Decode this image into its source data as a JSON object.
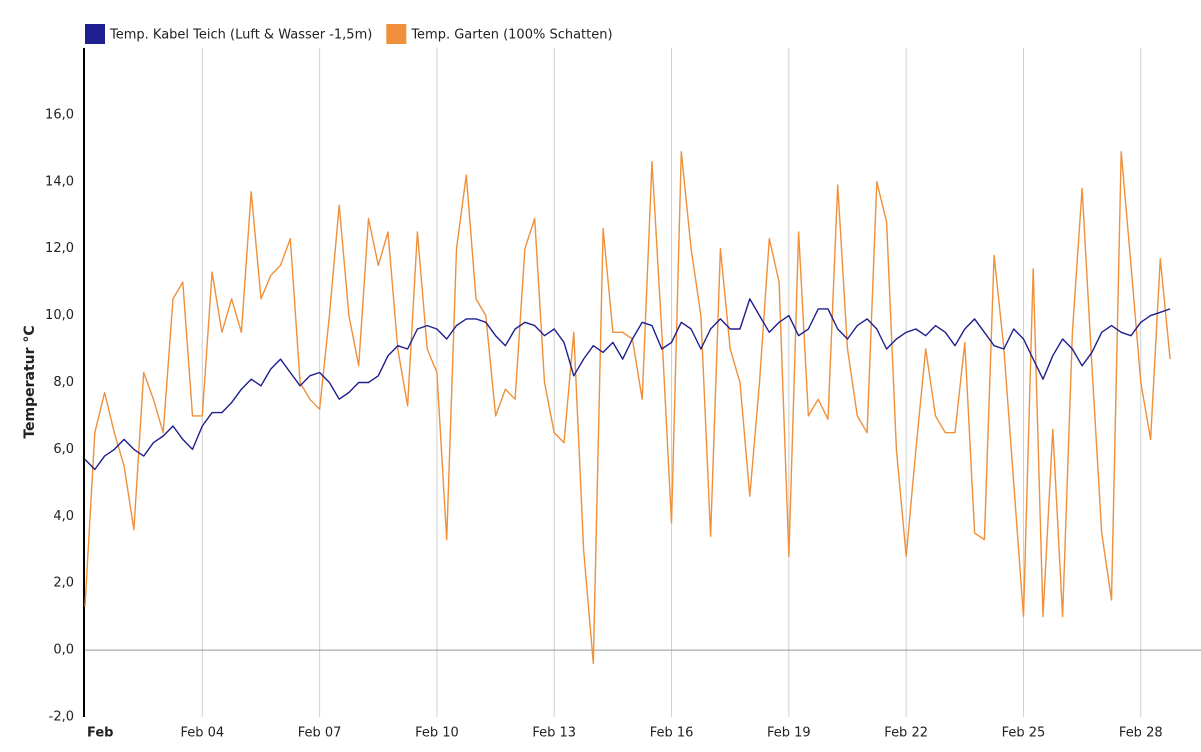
{
  "chart_data": {
    "type": "line",
    "y_label": "Temperatur °C",
    "x": [
      0,
      0.25,
      0.5,
      0.75,
      1,
      1.25,
      1.5,
      1.75,
      2,
      2.25,
      2.5,
      2.75,
      3,
      3.25,
      3.5,
      3.75,
      4,
      4.25,
      4.5,
      4.75,
      5,
      5.25,
      5.5,
      5.75,
      6,
      6.25,
      6.5,
      6.75,
      7,
      7.25,
      7.5,
      7.75,
      8,
      8.25,
      8.5,
      8.75,
      9,
      9.25,
      9.5,
      9.75,
      10,
      10.25,
      10.5,
      10.75,
      11,
      11.25,
      11.5,
      11.75,
      12,
      12.25,
      12.5,
      12.75,
      13,
      13.25,
      13.5,
      13.75,
      14,
      14.25,
      14.5,
      14.75,
      15,
      15.25,
      15.5,
      15.75,
      16,
      16.25,
      16.5,
      16.75,
      17,
      17.25,
      17.5,
      17.75,
      18,
      18.25,
      18.5,
      18.75,
      19,
      19.25,
      19.5,
      19.75,
      20,
      20.25,
      20.5,
      20.75,
      21,
      21.25,
      21.5,
      21.75,
      22,
      22.25,
      22.5,
      22.75,
      23,
      23.25,
      23.5,
      23.75,
      24,
      24.25,
      24.5,
      24.75,
      25,
      25.25,
      25.5,
      25.75,
      26,
      26.25,
      26.5,
      26.75,
      27,
      27.25,
      27.5,
      27.75
    ],
    "series": [
      {
        "name": "Temp. Kabel Teich (Luft & Wasser -1,5m)",
        "color": "#1f1f8f",
        "values": [
          5.7,
          5.4,
          5.8,
          6.0,
          6.3,
          6.0,
          5.8,
          6.2,
          6.4,
          6.7,
          6.3,
          6.0,
          6.7,
          7.1,
          7.1,
          7.4,
          7.8,
          8.1,
          7.9,
          8.4,
          8.7,
          8.3,
          7.9,
          8.2,
          8.3,
          8.0,
          7.5,
          7.7,
          8.0,
          8.0,
          8.2,
          8.8,
          9.1,
          9.0,
          9.6,
          9.7,
          9.6,
          9.3,
          9.7,
          9.9,
          9.9,
          9.8,
          9.4,
          9.1,
          9.6,
          9.8,
          9.7,
          9.4,
          9.6,
          9.2,
          8.2,
          8.7,
          9.1,
          8.9,
          9.2,
          8.7,
          9.3,
          9.8,
          9.7,
          9.0,
          9.2,
          9.8,
          9.6,
          9.0,
          9.6,
          9.9,
          9.6,
          9.6,
          10.5,
          10.0,
          9.5,
          9.8,
          10.0,
          9.4,
          9.6,
          10.2,
          10.2,
          9.6,
          9.3,
          9.7,
          9.9,
          9.6,
          9.0,
          9.3,
          9.5,
          9.6,
          9.4,
          9.7,
          9.5,
          9.1,
          9.6,
          9.9,
          9.5,
          9.1,
          9.0,
          9.6,
          9.3,
          8.7,
          8.1,
          8.8,
          9.3,
          9.0,
          8.5,
          8.9,
          9.5,
          9.7,
          9.5,
          9.4,
          9.8,
          10.0,
          10.1,
          10.2
        ]
      },
      {
        "name": "Temp. Garten (100% Schatten)",
        "color": "#f0903a",
        "values": [
          1.3,
          6.5,
          7.7,
          6.5,
          5.5,
          3.6,
          8.3,
          7.5,
          6.5,
          10.5,
          11.0,
          7.0,
          7.0,
          11.3,
          9.5,
          10.5,
          9.5,
          13.7,
          10.5,
          11.2,
          11.5,
          12.3,
          8.0,
          7.5,
          7.2,
          10.0,
          13.3,
          10.0,
          8.5,
          12.9,
          11.5,
          12.5,
          9.0,
          7.3,
          12.5,
          9.0,
          8.3,
          3.3,
          12.0,
          14.2,
          10.5,
          10.0,
          7.0,
          7.8,
          7.5,
          12.0,
          12.9,
          8.0,
          6.5,
          6.2,
          9.5,
          3.0,
          -0.4,
          12.6,
          9.5,
          9.5,
          9.3,
          7.5,
          14.6,
          9.5,
          3.8,
          14.9,
          12.0,
          10.0,
          3.4,
          12.0,
          9.0,
          8.0,
          4.6,
          8.0,
          12.3,
          11.0,
          2.8,
          12.5,
          7.0,
          7.5,
          6.9,
          13.9,
          9.0,
          7.0,
          6.5,
          14.0,
          12.8,
          6.0,
          2.8,
          6.0,
          9.0,
          7.0,
          6.5,
          6.5,
          9.2,
          3.5,
          3.3,
          11.8,
          9.0,
          5.0,
          1.0,
          11.4,
          1.0,
          6.6,
          1.0,
          9.5,
          13.8,
          8.5,
          3.5,
          1.5,
          14.9,
          11.5,
          8.0,
          6.3,
          11.7,
          8.7
        ]
      }
    ],
    "xlim": [
      0,
      28.54
    ],
    "xticks": [
      {
        "value": 0,
        "label": "Feb"
      },
      {
        "value": 3,
        "label": "Feb 04"
      },
      {
        "value": 6,
        "label": "Feb 07"
      },
      {
        "value": 9,
        "label": "Feb 10"
      },
      {
        "value": 12,
        "label": "Feb 13"
      },
      {
        "value": 15,
        "label": "Feb 16"
      },
      {
        "value": 18,
        "label": "Feb 19"
      },
      {
        "value": 21,
        "label": "Feb 22"
      },
      {
        "value": 24,
        "label": "Feb 25"
      },
      {
        "value": 27,
        "label": "Feb 28"
      }
    ],
    "ylim": [
      -2,
      18
    ],
    "yticks": [
      {
        "value": -2,
        "label": "-2,0"
      },
      {
        "value": 0,
        "label": "0,0"
      },
      {
        "value": 2,
        "label": "2,0"
      },
      {
        "value": 4,
        "label": "4,0"
      },
      {
        "value": 6,
        "label": "6,0"
      },
      {
        "value": 8,
        "label": "8,0"
      },
      {
        "value": 10,
        "label": "10,0"
      },
      {
        "value": 12,
        "label": "12,0"
      },
      {
        "value": 14,
        "label": "14,0"
      },
      {
        "value": 16,
        "label": "16,0"
      }
    ],
    "grid": true,
    "legend": "top-left"
  }
}
